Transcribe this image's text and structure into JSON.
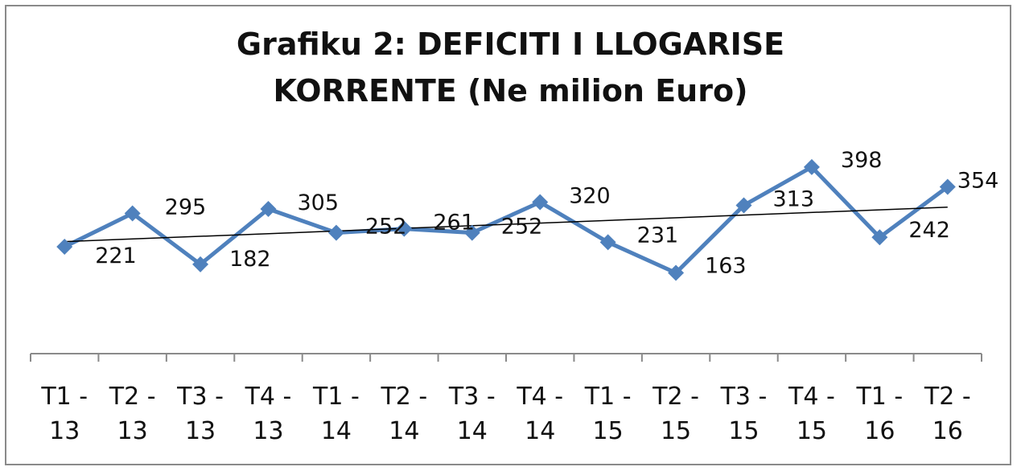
{
  "chart_data": {
    "type": "line",
    "title_lines": [
      "Grafiku 2: DEFICITI I LLOGARISE",
      "KORRENTE (Ne milion Euro)"
    ],
    "categories": [
      [
        "T1 -",
        "13"
      ],
      [
        "T2 -",
        "13"
      ],
      [
        "T3 -",
        "13"
      ],
      [
        "T4 -",
        "13"
      ],
      [
        "T1 -",
        "14"
      ],
      [
        "T2 -",
        "14"
      ],
      [
        "T3 -",
        "14"
      ],
      [
        "T4 -",
        "14"
      ],
      [
        "T1 -",
        "15"
      ],
      [
        "T2 -",
        "15"
      ],
      [
        "T3 -",
        "15"
      ],
      [
        "T4 -",
        "15"
      ],
      [
        "T1 -",
        "16"
      ],
      [
        "T2 -",
        "16"
      ]
    ],
    "values": [
      221,
      295,
      182,
      305,
      252,
      261,
      252,
      320,
      231,
      163,
      313,
      398,
      242,
      354
    ],
    "trendline": "linear",
    "xlabel": "",
    "ylabel": "",
    "grid": false,
    "legend": "none",
    "colors": {
      "series": "#4F81BD",
      "trend": "#000000",
      "axis": "#8a8a8a"
    }
  }
}
